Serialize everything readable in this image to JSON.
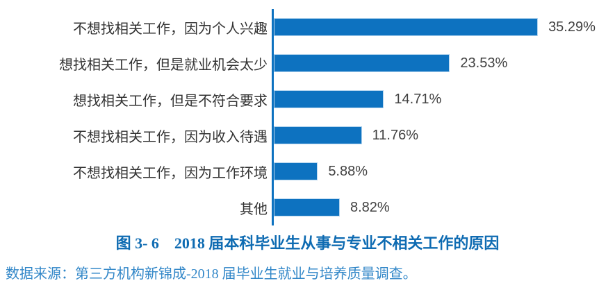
{
  "colors": {
    "bar": "#0d72c0",
    "axis": "#0d72c0",
    "caption": "#0e6bb2",
    "source": "#3287c8",
    "value": "#404040",
    "category": "#333333",
    "background": "#ffffff"
  },
  "chart_data": {
    "type": "bar",
    "orientation": "horizontal",
    "title": "图 3- 6　2018 届本科毕业生从事与专业不相关工作的原因",
    "categories": [
      "不想找相关工作，因为个人兴趣",
      "想找相关工作，但是就业机会太少",
      "想找相关工作，但是不符合要求",
      "不想找相关工作，因为收入待遇",
      "不想找相关工作，因为工作环境",
      "其他"
    ],
    "values": [
      35.29,
      23.53,
      14.71,
      11.76,
      5.88,
      8.82
    ],
    "value_labels": [
      "35.29%",
      "23.53%",
      "14.71%",
      "11.76%",
      "5.88%",
      "8.82%"
    ],
    "xlim": [
      0,
      45.6
    ],
    "grid": false,
    "legend": false,
    "bar_color": "#0d72c0"
  },
  "caption": {
    "text": "图 3- 6　2018 届本科毕业生从事与专业不相关工作的原因"
  },
  "source_note": {
    "text": "数据来源：第三方机构新锦成-2018 届毕业生就业与培养质量调查。"
  }
}
